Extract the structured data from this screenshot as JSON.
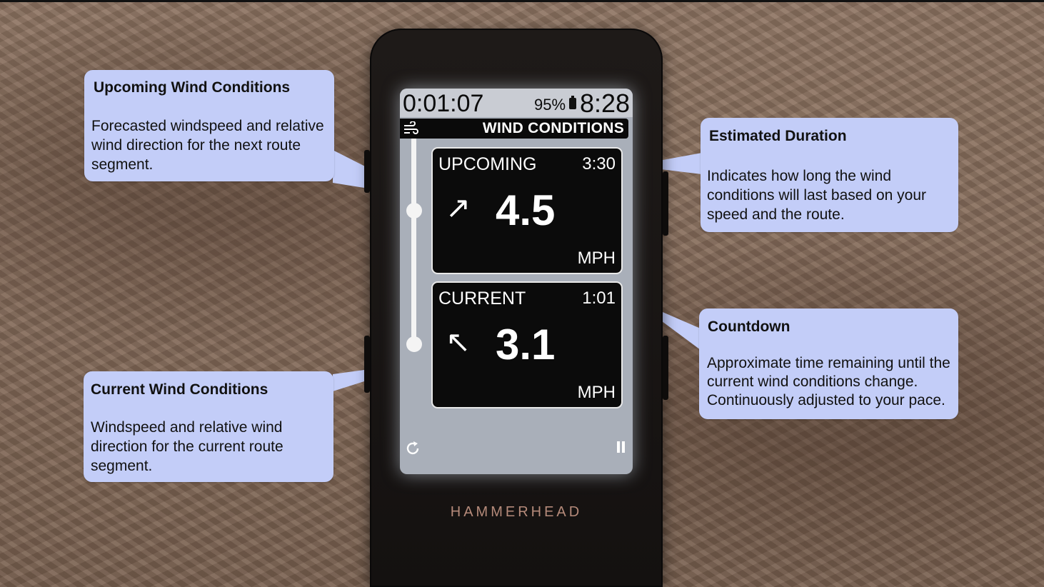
{
  "device": {
    "brand": "HAMMERHEAD",
    "status": {
      "elapsed": "0:01:07",
      "battery": "95%",
      "clock": "8:28"
    },
    "screen_title": "WIND CONDITIONS",
    "icons": {
      "title": "wind-icon",
      "battery": "battery-icon",
      "bottom_left": "refresh-icon",
      "bottom_right": "pause-icon"
    },
    "upcoming": {
      "label": "UPCOMING",
      "time": "3:30",
      "arrow": "↗",
      "value": "4.5",
      "unit": "MPH"
    },
    "current": {
      "label": "CURRENT",
      "time": "1:01",
      "arrow": "↖",
      "value": "3.1",
      "unit": "MPH"
    }
  },
  "callouts": {
    "upcoming": {
      "title": "Upcoming Wind Conditions",
      "body": "Forecasted windspeed and relative wind direction for the next route segment."
    },
    "current": {
      "title": "Current Wind Conditions",
      "body": "Windspeed and relative wind direction for the current route segment."
    },
    "duration": {
      "title": "Estimated Duration",
      "body": "Indicates how long the wind conditions will last based on your speed and the route."
    },
    "countdown": {
      "title": "Countdown",
      "body": "Approximate time remaining until the current wind conditions change. Continuously adjusted to your pace."
    }
  },
  "colors": {
    "callout_bg": "#c3cdf8",
    "screen_bg": "#a9afb9",
    "card_bg": "#0b0b0b",
    "brand_text": "#b58a7a"
  }
}
